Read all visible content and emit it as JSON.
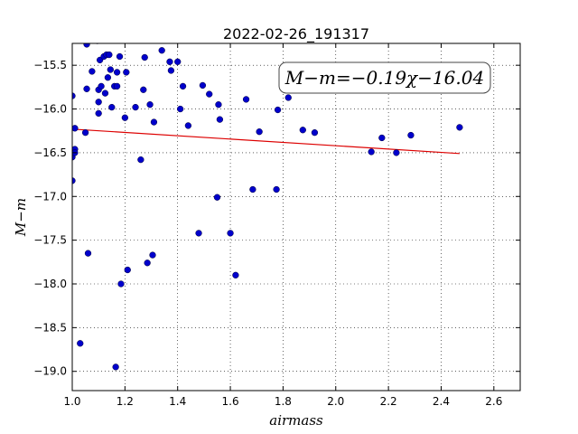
{
  "chart_data": {
    "type": "scatter",
    "title": "2022-02-26_191317",
    "xlabel": "airmass",
    "ylabel": "M−m",
    "xlim": [
      1.0,
      2.7
    ],
    "ylim": [
      -19.22,
      -15.25
    ],
    "y_inverted": true,
    "grid": true,
    "grid_style": "dotted",
    "x_ticks": [
      1.0,
      1.2,
      1.4,
      1.6,
      1.8,
      2.0,
      2.2,
      2.4,
      2.6
    ],
    "x_tick_labels": [
      "1.0",
      "1.2",
      "1.4",
      "1.6",
      "1.8",
      "2.0",
      "2.2",
      "2.4",
      "2.6"
    ],
    "y_ticks": [
      -15.5,
      -16.0,
      -16.5,
      -17.0,
      -17.5,
      -18.0,
      -18.5,
      -19.0
    ],
    "y_tick_labels": [
      "−15.5",
      "−16.0",
      "−16.5",
      "−17.0",
      "−17.5",
      "−18.0",
      "−18.5",
      "−19.0"
    ],
    "annotation": "M−m=−0.19χ−16.04",
    "point_color": "#0000cc",
    "fit_color": "#dd0000",
    "points": [
      [
        1.0,
        -15.85
      ],
      [
        1.0,
        -16.47
      ],
      [
        1.0,
        -16.55
      ],
      [
        1.0,
        -16.82
      ],
      [
        1.01,
        -16.22
      ],
      [
        1.01,
        -16.46
      ],
      [
        1.01,
        -16.5
      ],
      [
        1.03,
        -18.68
      ],
      [
        1.05,
        -16.27
      ],
      [
        1.055,
        -15.26
      ],
      [
        1.055,
        -15.77
      ],
      [
        1.06,
        -17.65
      ],
      [
        1.075,
        -15.57
      ],
      [
        1.095,
        -15.22
      ],
      [
        1.1,
        -15.92
      ],
      [
        1.1,
        -16.05
      ],
      [
        1.1,
        -15.78
      ],
      [
        1.105,
        -15.44
      ],
      [
        1.11,
        -15.74
      ],
      [
        1.12,
        -15.4
      ],
      [
        1.125,
        -15.82
      ],
      [
        1.13,
        -15.38
      ],
      [
        1.135,
        -15.64
      ],
      [
        1.14,
        -15.38
      ],
      [
        1.145,
        -15.55
      ],
      [
        1.15,
        -15.98
      ],
      [
        1.16,
        -15.74
      ],
      [
        1.165,
        -18.95
      ],
      [
        1.17,
        -15.58
      ],
      [
        1.17,
        -15.74
      ],
      [
        1.18,
        -15.4
      ],
      [
        1.185,
        -18.0
      ],
      [
        1.2,
        -16.1
      ],
      [
        1.205,
        -15.58
      ],
      [
        1.21,
        -17.84
      ],
      [
        1.24,
        -15.98
      ],
      [
        1.26,
        -16.58
      ],
      [
        1.27,
        -15.78
      ],
      [
        1.275,
        -15.41
      ],
      [
        1.285,
        -17.76
      ],
      [
        1.295,
        -15.95
      ],
      [
        1.305,
        -17.67
      ],
      [
        1.31,
        -16.15
      ],
      [
        1.34,
        -15.33
      ],
      [
        1.37,
        -15.46
      ],
      [
        1.375,
        -15.56
      ],
      [
        1.4,
        -15.46
      ],
      [
        1.41,
        -16.0
      ],
      [
        1.42,
        -15.74
      ],
      [
        1.44,
        -16.19
      ],
      [
        1.48,
        -17.42
      ],
      [
        1.495,
        -15.73
      ],
      [
        1.52,
        -15.83
      ],
      [
        1.55,
        -17.01
      ],
      [
        1.555,
        -15.95
      ],
      [
        1.56,
        -16.12
      ],
      [
        1.6,
        -17.42
      ],
      [
        1.62,
        -17.9
      ],
      [
        1.66,
        -15.89
      ],
      [
        1.685,
        -16.92
      ],
      [
        1.71,
        -16.26
      ],
      [
        1.775,
        -16.92
      ],
      [
        1.78,
        -16.01
      ],
      [
        1.82,
        -15.87
      ],
      [
        1.875,
        -16.24
      ],
      [
        1.92,
        -16.27
      ],
      [
        2.135,
        -16.49
      ],
      [
        2.175,
        -16.33
      ],
      [
        2.23,
        -16.5
      ],
      [
        2.285,
        -16.3
      ],
      [
        2.47,
        -16.21
      ]
    ],
    "fit_line": {
      "slope": -0.19,
      "intercept": -16.04,
      "x_range": [
        1.0,
        2.47
      ]
    }
  }
}
